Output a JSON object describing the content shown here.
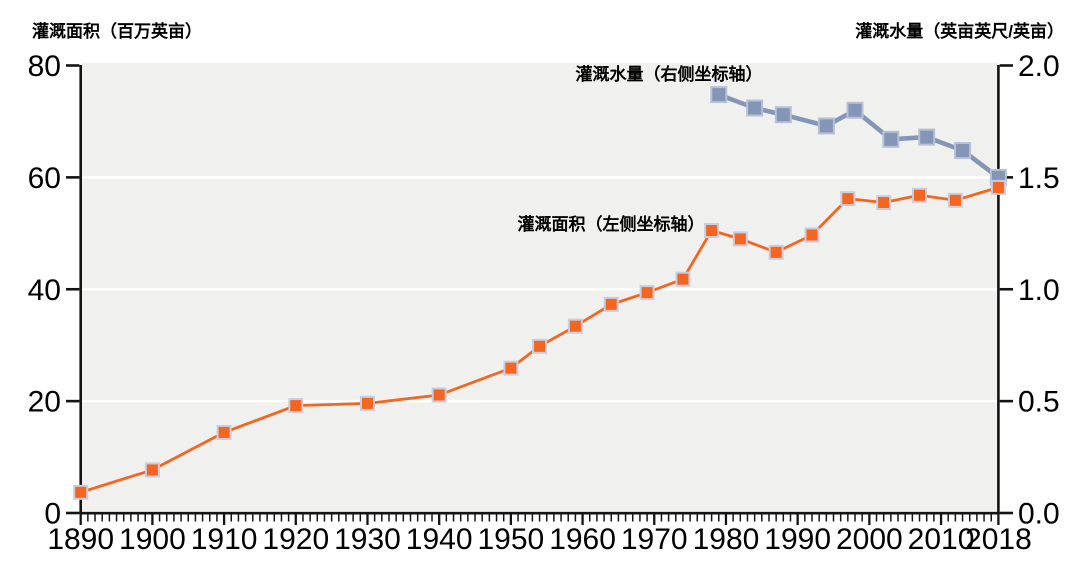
{
  "chart_data": {
    "type": "line",
    "title": "",
    "x_axis": {
      "min": 1890,
      "max": 2018,
      "minor_tick_step": 1,
      "major_ticks": [
        {
          "label": "1890",
          "value": 1890
        },
        {
          "label": "1900",
          "value": 1900
        },
        {
          "label": "1910",
          "value": 1910
        },
        {
          "label": "1920",
          "value": 1920
        },
        {
          "label": "1930",
          "value": 1930
        },
        {
          "label": "1940",
          "value": 1940
        },
        {
          "label": "1950",
          "value": 1950
        },
        {
          "label": "1960",
          "value": 1960
        },
        {
          "label": "1970",
          "value": 1970
        },
        {
          "label": "1980",
          "value": 1980
        },
        {
          "label": "1990",
          "value": 1990
        },
        {
          "label": "2000",
          "value": 2000
        },
        {
          "label": "2010",
          "value": 2010
        },
        {
          "label": "2018",
          "value": 2018
        }
      ]
    },
    "left_axis": {
      "label": "灌溉面积（百万英亩）",
      "min": 0,
      "max": 80,
      "ticks": [
        {
          "label": "0",
          "value": 0
        },
        {
          "label": "20",
          "value": 20
        },
        {
          "label": "40",
          "value": 40
        },
        {
          "label": "60",
          "value": 60
        },
        {
          "label": "80",
          "value": 80
        }
      ],
      "gridlines": [
        20,
        40,
        60
      ]
    },
    "right_axis": {
      "label": "灌溉水量（英亩英尺/英亩）",
      "min": 0,
      "max": 2,
      "ticks": [
        {
          "label": "0.0",
          "value": 0
        },
        {
          "label": "0.5",
          "value": 0.5
        },
        {
          "label": "1.0",
          "value": 1
        },
        {
          "label": "1.5",
          "value": 1.5
        },
        {
          "label": "2.0",
          "value": 2
        }
      ]
    },
    "series": [
      {
        "name": "灌溉水量（右侧坐标轴）",
        "axis": "right",
        "color": "#8496b7",
        "marker_edge": "#b7c0d5",
        "marker_size": 15,
        "line_width": 4.6,
        "x": [
          1979,
          1984,
          1988,
          1994,
          1998,
          2003,
          2008,
          2013,
          2018
        ],
        "values": [
          1.87,
          1.81,
          1.78,
          1.73,
          1.8,
          1.67,
          1.68,
          1.62,
          1.5
        ]
      },
      {
        "name": "灌溉面积（左侧坐标轴）",
        "axis": "left",
        "color": "#f4661f",
        "marker_edge": "#c9cde0",
        "marker_size": 13,
        "line_width": 2.8,
        "x": [
          1890,
          1900,
          1910,
          1920,
          1930,
          1940,
          1950,
          1954,
          1959,
          1964,
          1969,
          1974,
          1978,
          1982,
          1987,
          1992,
          1997,
          2002,
          2007,
          2012,
          2018
        ],
        "values": [
          3.7,
          7.7,
          14.4,
          19.2,
          19.6,
          21.1,
          25.9,
          29.8,
          33.4,
          37.3,
          39.4,
          41.8,
          50.5,
          49.0,
          46.6,
          49.7,
          56.2,
          55.5,
          56.8,
          55.9,
          58.2
        ]
      }
    ],
    "annotations": [
      {
        "text": "灌溉水量（右侧坐标轴）",
        "target_series": 0
      },
      {
        "text": "灌溉面积（左侧坐标轴）",
        "target_series": 1
      }
    ],
    "layout_hints": {
      "grid": "horizontal-white",
      "legend_position": "inline-annotations",
      "plot_bg": "#f0f0ee",
      "axis_color": "#141414",
      "grid_color": "#ffffff"
    }
  }
}
